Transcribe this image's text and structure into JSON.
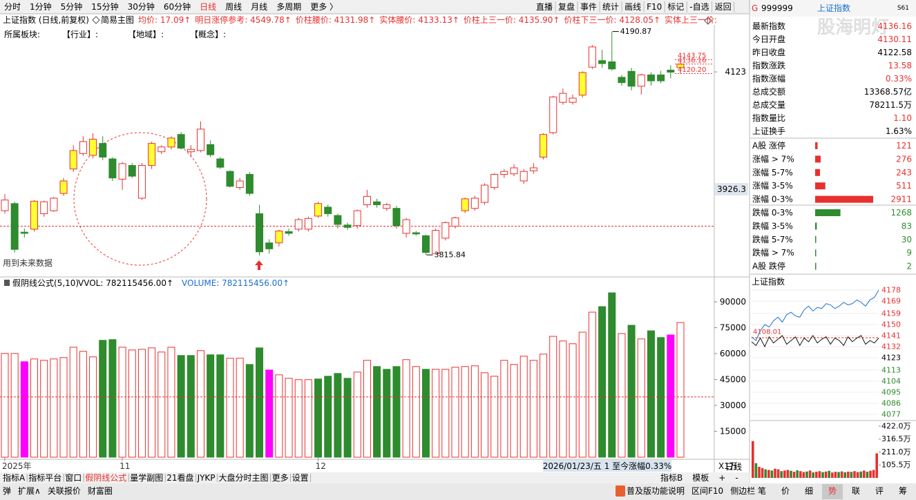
{
  "toolbar": {
    "tabs": [
      {
        "label": "分时",
        "active": false
      },
      {
        "label": "1分钟",
        "active": false
      },
      {
        "label": "5分钟",
        "active": false
      },
      {
        "label": "15分钟",
        "active": false
      },
      {
        "label": "30分钟",
        "active": false
      },
      {
        "label": "60分钟",
        "active": false
      },
      {
        "label": "日线",
        "active": true
      },
      {
        "label": "周线",
        "active": false
      },
      {
        "label": "月线",
        "active": false
      },
      {
        "label": "多周期",
        "active": false
      },
      {
        "label": "更多 〉",
        "active": false
      }
    ],
    "right": [
      "直播",
      "复盘",
      "事件",
      "统计",
      "画线",
      "F10",
      "标记",
      "-自选",
      "返回"
    ]
  },
  "header": {
    "title": "上证指数 (日线,前复权)",
    "main_chart": "简易主图",
    "items": [
      "均价: 17.09↑",
      "明日涨停参考: 4549.78↑",
      "价柱腰价: 4131.98↑",
      "实体腰价: 4133.13↑",
      "价柱上三一价: 4135.90↑",
      "价柱下三一价: 4128.05↑",
      "实体上三一价:"
    ],
    "sectors": [
      "所属板块:",
      "【行业】:",
      "【地域】:",
      "【概念】:"
    ],
    "note": "用到未来数据"
  },
  "chart_data": [
    {
      "type": "candlestick",
      "categories": [
        "2025年",
        null,
        null,
        null,
        null,
        null,
        null,
        null,
        null,
        null,
        null,
        null,
        "11",
        null,
        null,
        null,
        null,
        null,
        null,
        null,
        null,
        null,
        null,
        null,
        null,
        null,
        null,
        null,
        null,
        null,
        null,
        null,
        "12",
        null,
        null,
        null,
        null,
        null,
        null,
        null,
        null,
        null,
        null,
        null,
        null,
        null,
        null,
        null,
        null,
        null,
        null,
        null,
        null,
        null,
        null,
        null,
        null,
        null,
        null,
        null,
        null,
        null,
        null,
        null,
        null,
        null,
        null,
        null,
        null,
        null
      ],
      "open": [
        3890,
        3902,
        3854,
        3859,
        3885,
        3890,
        3919,
        3960,
        3986,
        3983,
        4003,
        3977,
        3943,
        3966,
        3911,
        3966,
        3989,
        3997,
        4018,
        3989,
        3991,
        4001,
        3977,
        3956,
        3929,
        3951,
        3885,
        3836,
        3836,
        3855,
        3859,
        3859,
        3881,
        3896,
        3882,
        3866,
        3865,
        3900,
        3905,
        3894,
        3894,
        3852,
        3853,
        3848,
        3818,
        3844,
        3864,
        3890,
        3894,
        3904,
        3929,
        3951,
        3952,
        3940,
        3957,
        3980,
        4021,
        4072,
        4072,
        4084,
        4131,
        4142,
        4140,
        4114,
        4124,
        4099,
        4118,
        4118,
        4126,
        4130.11
      ],
      "high": [
        3918,
        3905,
        3860,
        3908,
        3907,
        3913,
        3945,
        4000,
        4015,
        4020,
        4015,
        3980,
        3972,
        3970,
        3970,
        4006,
        4000,
        4015,
        4022,
        4000,
        4040,
        4008,
        3980,
        3958,
        3945,
        3955,
        3900,
        3842,
        3858,
        3860,
        3878,
        3880,
        3905,
        3900,
        3885,
        3870,
        3892,
        3925,
        3910,
        3903,
        3898,
        3878,
        3856,
        3850,
        3860,
        3872,
        3880,
        3912,
        3915,
        3936,
        3953,
        3960,
        3968,
        3960,
        3970,
        4020,
        4083,
        4095,
        4085,
        4124,
        4168,
        4160,
        4190.87,
        4118,
        4130,
        4120,
        4122,
        4125,
        4134,
        4143.75
      ],
      "low": [
        3885,
        3820,
        3845,
        3855,
        3880,
        3888,
        3915,
        3955,
        3982,
        3978,
        3975,
        3940,
        3925,
        3945,
        3908,
        3960,
        3985,
        3993,
        3993,
        3980,
        3988,
        3980,
        3960,
        3929,
        3925,
        3915,
        3815,
        3818,
        3830,
        3848,
        3855,
        3855,
        3878,
        3880,
        3860,
        3858,
        3860,
        3895,
        3895,
        3890,
        3860,
        3845,
        3848,
        3815.84,
        3817,
        3840,
        3860,
        3886,
        3890,
        3900,
        3925,
        3945,
        3948,
        3935,
        3952,
        3976,
        4018,
        4068,
        4068,
        4080,
        4128,
        4130,
        4125,
        4100,
        4092,
        4085,
        4100,
        4104,
        4112,
        4120.2
      ],
      "close": [
        3908,
        3825,
        3852,
        3906,
        3905,
        3911,
        3940,
        3991,
        4006,
        4010,
        3980,
        3945,
        3969,
        3948,
        3966,
        4003,
        3997,
        4012,
        3995,
        3993,
        4027,
        3984,
        3963,
        3931,
        3940,
        3919,
        3821,
        3826,
        3856,
        3852,
        3875,
        3877,
        3902,
        3885,
        3867,
        3862,
        3890,
        3914,
        3900,
        3900,
        3865,
        3875,
        3851,
        3820,
        3857,
        3870,
        3878,
        3910,
        3911,
        3933,
        3951,
        3956,
        3962,
        3956,
        3962,
        4018,
        4081,
        4087,
        4079,
        4122,
        4165,
        4137,
        4128,
        4105,
        4099,
        4118,
        4108,
        4108,
        4122.58,
        4136.16
      ],
      "highlight": [
        false,
        false,
        false,
        true,
        false,
        false,
        true,
        true,
        false,
        true,
        false,
        false,
        false,
        false,
        false,
        true,
        false,
        true,
        false,
        false,
        false,
        false,
        false,
        false,
        false,
        false,
        false,
        false,
        true,
        false,
        false,
        false,
        true,
        false,
        false,
        false,
        false,
        false,
        false,
        false,
        false,
        false,
        false,
        false,
        false,
        false,
        false,
        true,
        false,
        false,
        false,
        false,
        false,
        false,
        false,
        true,
        false,
        false,
        false,
        true,
        false,
        false,
        false,
        false,
        false,
        false,
        false,
        false,
        false,
        true
      ],
      "up_color": "#e8302f",
      "down_color": "#2e8b2e",
      "highlight_color": "#ffff33",
      "ylim": [
        3780,
        4202
      ],
      "yticks": [
        4123
      ],
      "reference_line": 3864,
      "annotations": [
        4190.87,
        3815.84
      ],
      "last_levels": [
        4143.75,
        4136.16,
        {
          "value": 4120.2,
          "label": "4120.20"
        }
      ],
      "cursor_value": 3926.3
    },
    {
      "type": "bar",
      "title": "假阴线公式(5,10)",
      "legend": [
        "VVOL: 782115456.00↑",
        "VOLUME: 782115456.00↑"
      ],
      "values": [
        60100,
        60100,
        55300,
        56900,
        56100,
        56900,
        57700,
        63700,
        61300,
        58100,
        67700,
        68100,
        63700,
        62100,
        62500,
        63300,
        60900,
        63700,
        58900,
        58900,
        61700,
        59300,
        59300,
        57300,
        57300,
        53700,
        63300,
        50500,
        47700,
        45700,
        44900,
        44900,
        45300,
        46900,
        48500,
        45700,
        49300,
        56100,
        52500,
        50900,
        52500,
        56500,
        52500,
        50900,
        50900,
        50900,
        52100,
        52500,
        52900,
        48900,
        46900,
        56100,
        53700,
        58500,
        56100,
        59700,
        70000,
        67300,
        65700,
        72400,
        84000,
        87200,
        95200,
        71600,
        76400,
        68500,
        73200,
        69300,
        70800,
        78000
      ],
      "colors": [
        "#e8302f",
        "#e8302f",
        "#ff00ff",
        "#e8302f",
        "#e8302f",
        "#e8302f",
        "#e8302f",
        "#e8302f",
        "#e8302f",
        "#e8302f",
        "#2e8b2e",
        "#2e8b2e",
        "#e8302f",
        "#e8302f",
        "#e8302f",
        "#e8302f",
        "#e8302f",
        "#e8302f",
        "#2e8b2e",
        "#2e8b2e",
        "#e8302f",
        "#2e8b2e",
        "#2e8b2e",
        "#e8302f",
        "#e8302f",
        "#2e8b2e",
        "#2e8b2e",
        "#ff00ff",
        "#e8302f",
        "#e8302f",
        "#e8302f",
        "#e8302f",
        "#2e8b2e",
        "#2e8b2e",
        "#2e8b2e",
        "#2e8b2e",
        "#e8302f",
        "#e8302f",
        "#2e8b2e",
        "#2e8b2e",
        "#2e8b2e",
        "#e8302f",
        "#e8302f",
        "#2e8b2e",
        "#e8302f",
        "#e8302f",
        "#e8302f",
        "#e8302f",
        "#e8302f",
        "#e8302f",
        "#e8302f",
        "#e8302f",
        "#e8302f",
        "#e8302f",
        "#e8302f",
        "#e8302f",
        "#e8302f",
        "#e8302f",
        "#e8302f",
        "#e8302f",
        "#e8302f",
        "#2e8b2e",
        "#2e8b2e",
        "#e8302f",
        "#2e8b2e",
        "#e8302f",
        "#2e8b2e",
        "#2e8b2e",
        "#ff00ff",
        "#e8302f"
      ],
      "hollow_color": "#e8302f",
      "ylim": [
        0,
        97600
      ],
      "yticks": [
        15000,
        30000,
        45000,
        60000,
        75000,
        90000
      ],
      "reference_line": 34900,
      "unit": "X1万"
    },
    {
      "type": "line",
      "title": "上证指数",
      "series": [
        {
          "color": "#1a6fd0",
          "values": [
            4140,
            4137,
            4145,
            4150,
            4148,
            4153,
            4156,
            4152,
            4158,
            4160,
            4157,
            4156,
            4162,
            4165,
            4161,
            4164,
            4163,
            4167,
            4166,
            4163,
            4165,
            4168,
            4166,
            4167,
            4170,
            4168,
            4165,
            4170,
            4172,
            4178
          ]
        },
        {
          "color": "#111111",
          "values": [
            4136,
            4133,
            4139,
            4132,
            4140,
            4135,
            4138,
            4141,
            4134,
            4137,
            4140,
            4133,
            4139,
            4136,
            4141,
            4135,
            4138,
            4140,
            4134,
            4139,
            4137,
            4133,
            4140,
            4136,
            4139,
            4141,
            4134,
            4137,
            4135,
            4139
          ]
        }
      ],
      "ylim": [
        4073.6,
        4181.4
      ],
      "yticks": [
        4077,
        4086,
        4095,
        4104,
        4113,
        4123,
        4132,
        4141,
        4150,
        4159,
        4169,
        4178
      ],
      "reference": 4123,
      "marker_label": "4108.01"
    },
    {
      "type": "bar",
      "values": [
        300,
        120,
        90,
        80,
        70,
        65,
        60,
        75,
        70,
        55,
        60,
        65,
        58,
        50,
        62,
        55,
        48,
        52,
        60,
        45,
        50,
        55,
        47,
        52,
        58,
        44,
        50,
        48,
        53,
        46,
        51,
        49,
        55,
        47,
        52,
        60,
        50,
        58,
        65,
        200
      ],
      "colors": [
        "#e8302f",
        "#2e8b2e",
        "#e8302f",
        "#e8302f",
        "#2e8b2e",
        "#e8302f",
        "#2e8b2e",
        "#e8302f",
        "#e8302f",
        "#2e8b2e",
        "#e8302f",
        "#e8302f",
        "#2e8b2e",
        "#e8302f",
        "#2e8b2e",
        "#e8302f",
        "#e8302f",
        "#2e8b2e",
        "#e8302f",
        "#2e8b2e",
        "#e8302f",
        "#e8302f",
        "#2e8b2e",
        "#e8302f",
        "#2e8b2e",
        "#e8302f",
        "#e8302f",
        "#2e8b2e",
        "#e8302f",
        "#2e8b2e",
        "#e8302f",
        "#2e8b2e",
        "#e8302f",
        "#e8302f",
        "#2e8b2e",
        "#e8302f",
        "#2e8b2e",
        "#e8302f",
        "#e8302f",
        "#e8302f"
      ],
      "ylim": [
        0,
        450
      ],
      "yticks": [
        {
          "value": 105.5,
          "label": "105.5万"
        },
        {
          "value": 211,
          "label": "211.0万"
        },
        {
          "value": 316.5,
          "label": "316.5万"
        },
        {
          "value": 422,
          "label": "422.0万"
        }
      ]
    },
    {
      "type": "hbar",
      "categories": [
        "A股 涨停",
        "涨幅 > 7%",
        "涨幅 5-7%",
        "涨幅 3-5%",
        "涨幅 0-3%",
        "跌幅 0-3%",
        "跌幅 3-5%",
        "跌幅 5-7%",
        "跌幅 > 7%",
        "A股 跌停"
      ],
      "values": [
        121,
        276,
        243,
        511,
        2911,
        1268,
        83,
        30,
        9,
        2
      ],
      "colors": [
        "#e8302f",
        "#e8302f",
        "#e8302f",
        "#e8302f",
        "#e8302f",
        "#2e8b2e",
        "#2e8b2e",
        "#2e8b2e",
        "#2e8b2e",
        "#2e8b2e"
      ]
    }
  ],
  "sidebar": {
    "code_prefix": "G",
    "code": "999999",
    "name": "上证指数",
    "badge": "S61",
    "watermark": "股海明灯",
    "rows": [
      {
        "label": "最新指数",
        "value": "4136.16",
        "color": "#e8302f"
      },
      {
        "label": "今日开盘",
        "value": "4130.11",
        "color": "#e8302f"
      },
      {
        "label": "昨日收盘",
        "value": "4122.58",
        "color": "#000000"
      },
      {
        "label": "指数涨跌",
        "value": "13.58",
        "color": "#e8302f"
      },
      {
        "label": "指数涨幅",
        "value": "0.33%",
        "color": "#e8302f"
      },
      {
        "label": "总成交额",
        "value": "13368.57亿",
        "color": "#000000"
      },
      {
        "label": "总成交量",
        "value": "78211.5万",
        "color": "#000000"
      },
      {
        "label": "指数量比",
        "value": "1.10",
        "color": "#e8302f"
      },
      {
        "label": "上证换手",
        "value": "1.63%",
        "color": "#000000"
      }
    ],
    "tabs": [
      {
        "label": "笔",
        "active": false
      },
      {
        "label": "价",
        "active": false
      },
      {
        "label": "细",
        "active": false
      },
      {
        "label": "势",
        "active": true
      },
      {
        "label": "联",
        "active": false
      },
      {
        "label": "评",
        "active": false
      },
      {
        "label": "筹",
        "active": false
      }
    ]
  },
  "footer": {
    "period": "日线",
    "status": "2026/01/23/五 1 至今涨幅0.33%",
    "tabs": [
      {
        "label": "指标A",
        "active": false
      },
      {
        "label": "指标平台",
        "active": false
      },
      {
        "label": "窗口",
        "active": false
      },
      {
        "label": "假阴线公式",
        "active": true
      },
      {
        "label": "量学副图",
        "active": false
      },
      {
        "label": "21看盘",
        "active": false
      },
      {
        "label": "JYKP",
        "active": false
      },
      {
        "label": "大盘分时主图",
        "active": false
      },
      {
        "label": "更多",
        "active": false
      },
      {
        "label": "设置",
        "active": false
      }
    ],
    "right_tabs": [
      "指标B",
      "模板",
      "+",
      "-"
    ],
    "bottom_left": [
      "弹",
      "扩展∧",
      "关联报价",
      "财富圈"
    ],
    "bottom_right": [
      "普及版功能说明",
      "区间F10",
      "侧边栏"
    ]
  }
}
